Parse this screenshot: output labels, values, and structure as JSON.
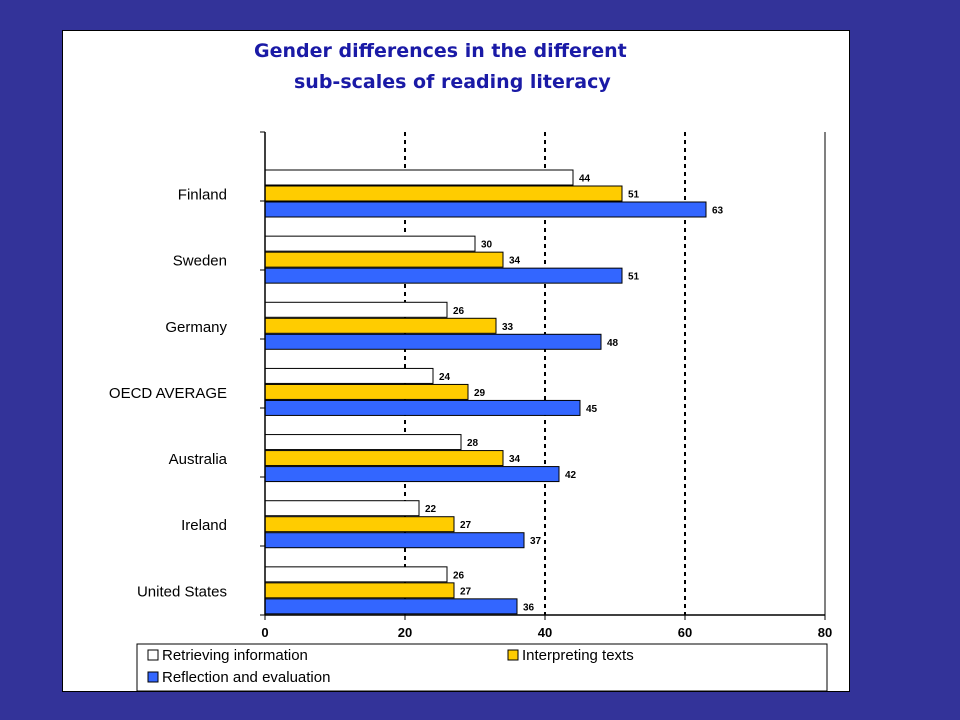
{
  "title_line1": "Gender differences in the different",
  "title_line2": "sub-scales of reading literacy",
  "colors": {
    "background": "#333399",
    "retrieving": "#ffffff",
    "interpreting": "#ffcc00",
    "reflection": "#3366ff"
  },
  "chart_data": {
    "type": "bar",
    "orientation": "horizontal",
    "title": "Gender differences in the different sub-scales of reading literacy",
    "categories": [
      "Finland",
      "Sweden",
      "Germany",
      "OECD AVERAGE",
      "Australia",
      "Ireland",
      "United States"
    ],
    "series": [
      {
        "name": "Retrieving information",
        "color": "#ffffff",
        "values": [
          44,
          30,
          26,
          24,
          28,
          22,
          26
        ]
      },
      {
        "name": "Interpreting texts",
        "color": "#ffcc00",
        "values": [
          51,
          34,
          33,
          29,
          34,
          27,
          27
        ]
      },
      {
        "name": "Reflection and evaluation",
        "color": "#3366ff",
        "values": [
          63,
          51,
          48,
          45,
          42,
          37,
          36
        ]
      }
    ],
    "xlim": [
      0,
      80
    ],
    "xticks": [
      "0",
      "20",
      "40",
      "60",
      "80"
    ],
    "xlabel": "",
    "ylabel": "",
    "grid": "vertical dashed",
    "legend": "bottom"
  }
}
